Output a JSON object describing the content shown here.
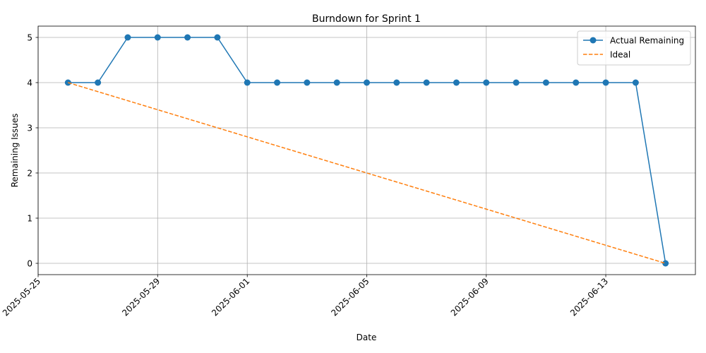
{
  "chart_data": {
    "type": "line",
    "title": "Burndown for Sprint 1",
    "xlabel": "Date",
    "ylabel": "Remaining Issues",
    "xlim": [
      "2025-05-25",
      "2025-06-16"
    ],
    "ylim": [
      -0.25,
      5.25
    ],
    "x_ticks": [
      "2025-05-25",
      "2025-05-29",
      "2025-06-01",
      "2025-06-05",
      "2025-06-09",
      "2025-06-13"
    ],
    "y_ticks": [
      0,
      1,
      2,
      3,
      4,
      5
    ],
    "grid": true,
    "legend_position": "top-right",
    "series": [
      {
        "name": "Actual Remaining",
        "color": "#1f77b4",
        "style": "solid",
        "marker": "circle",
        "x": [
          "2025-05-26",
          "2025-05-27",
          "2025-05-28",
          "2025-05-29",
          "2025-05-30",
          "2025-05-31",
          "2025-06-01",
          "2025-06-02",
          "2025-06-03",
          "2025-06-04",
          "2025-06-05",
          "2025-06-06",
          "2025-06-07",
          "2025-06-08",
          "2025-06-09",
          "2025-06-10",
          "2025-06-11",
          "2025-06-12",
          "2025-06-13",
          "2025-06-14",
          "2025-06-15"
        ],
        "values": [
          4,
          4,
          5,
          5,
          5,
          5,
          4,
          4,
          4,
          4,
          4,
          4,
          4,
          4,
          4,
          4,
          4,
          4,
          4,
          4,
          0
        ]
      },
      {
        "name": "Ideal",
        "color": "#ff7f0e",
        "style": "dashed",
        "marker": "none",
        "x": [
          "2025-05-26",
          "2025-06-15"
        ],
        "values": [
          4,
          0
        ]
      }
    ]
  }
}
